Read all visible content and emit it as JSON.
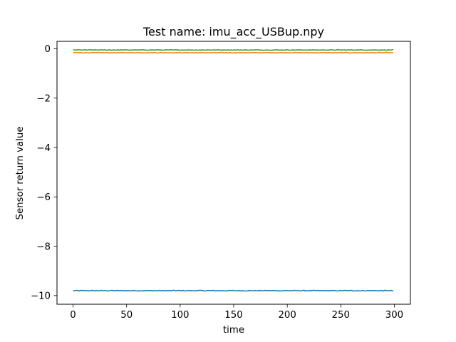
{
  "chart_data": {
    "type": "line",
    "title": "Test name: imu_acc_USBup.npy",
    "xlabel": "time",
    "ylabel": "Sensor return value",
    "xlim": [
      -15,
      315
    ],
    "ylim": [
      -10.35,
      0.3
    ],
    "xticks": [
      0,
      50,
      100,
      150,
      200,
      250,
      300
    ],
    "xtick_labels": [
      "0",
      "50",
      "100",
      "150",
      "200",
      "250",
      "300"
    ],
    "yticks": [
      0,
      -2,
      -4,
      -6,
      -8,
      -10
    ],
    "ytick_labels": [
      "0",
      "−2",
      "−4",
      "−6",
      "−8",
      "−10"
    ],
    "grid": false,
    "legend": false,
    "series": [
      {
        "color": "#1f77b4",
        "mean": -9.8,
        "noise": 0.015,
        "n": 300
      },
      {
        "color": "#ff7f0e",
        "mean": -0.16,
        "noise": 0.012,
        "n": 300
      },
      {
        "color": "#2ca02c",
        "mean": -0.05,
        "noise": 0.01,
        "n": 300
      }
    ]
  }
}
